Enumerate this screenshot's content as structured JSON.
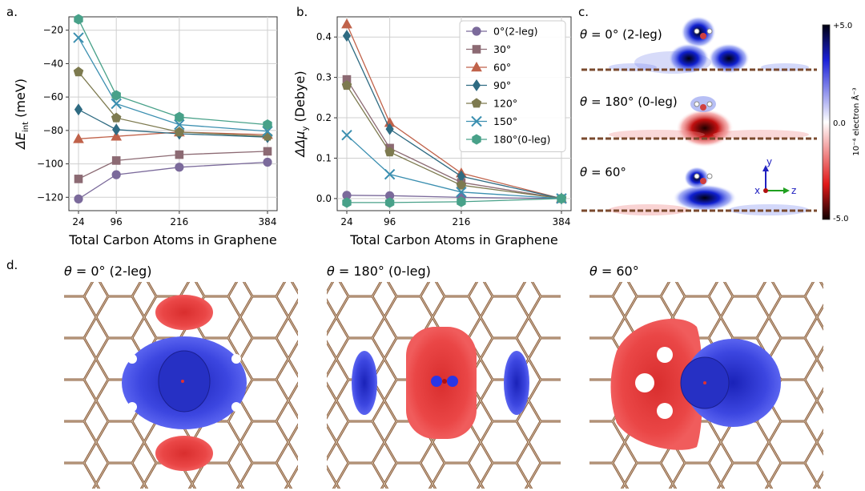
{
  "panel_labels": {
    "a": "a.",
    "b": "b.",
    "c": "c.",
    "d": "d."
  },
  "colors": {
    "s0": "#7b6a9b",
    "s30": "#8c6a73",
    "s60": "#c0624a",
    "s90": "#2f6b82",
    "s120": "#7d7a4f",
    "s150": "#3b8fb0",
    "s180": "#48a189",
    "positive": "#2a36e6",
    "negative": "#e33a3a",
    "bond_dark": "#7a4a2e",
    "bond_light": "#c9b49a"
  },
  "chart_data": [
    {
      "type": "line",
      "panel": "a",
      "x": [
        24,
        96,
        216,
        384
      ],
      "xticks": [
        "24",
        "96",
        "216",
        "384"
      ],
      "xlabel": "Total Carbon Atoms in Graphene",
      "ylabel": "ΔE",
      "ylabel_sub": "int",
      "ylabel_unit": " (meV)",
      "ylim": [
        -128,
        -12
      ],
      "yticks": [
        -20,
        -40,
        -60,
        -80,
        -100,
        -120
      ],
      "ytick_labels": [
        "−20",
        "−40",
        "−60",
        "−80",
        "−100",
        "−120"
      ],
      "grid": true,
      "series": [
        {
          "name": "0°(2-leg)",
          "values": [
            -121,
            -106.5,
            -102,
            -99
          ],
          "marker": "circle",
          "color": "#7b6a9b"
        },
        {
          "name": "30°",
          "values": [
            -109,
            -98,
            -94.5,
            -92.5
          ],
          "marker": "square",
          "color": "#8c6a73"
        },
        {
          "name": "60°",
          "values": [
            -85,
            -83.5,
            -81,
            -82.5
          ],
          "marker": "triangle",
          "color": "#c0624a"
        },
        {
          "name": "90°",
          "values": [
            -67.5,
            -79.5,
            -82,
            -84
          ],
          "marker": "diamond",
          "color": "#2f6b82"
        },
        {
          "name": "120°",
          "values": [
            -45,
            -72.5,
            -81,
            -83.5
          ],
          "marker": "pentagon",
          "color": "#7d7a4f"
        },
        {
          "name": "150°",
          "values": [
            -24.5,
            -64,
            -76.5,
            -80.5
          ],
          "marker": "x",
          "color": "#3b8fb0"
        },
        {
          "name": "180°(0-leg)",
          "values": [
            -13.5,
            -59,
            -72,
            -76.5
          ],
          "marker": "hexagon",
          "color": "#48a189"
        }
      ]
    },
    {
      "type": "line",
      "panel": "b",
      "x": [
        24,
        96,
        216,
        384
      ],
      "xticks": [
        "24",
        "96",
        "216",
        "384"
      ],
      "xlabel": "Total Carbon Atoms in Graphene",
      "ylabel": "ΔΔμ",
      "ylabel_sub": "y",
      "ylabel_unit": " (Debye)",
      "ylim": [
        -0.03,
        0.45
      ],
      "yticks": [
        0.0,
        0.1,
        0.2,
        0.3,
        0.4
      ],
      "ytick_labels": [
        "0.0",
        "0.1",
        "0.2",
        "0.3",
        "0.4"
      ],
      "grid": true,
      "legend_placement": "top-right",
      "series": [
        {
          "name": "0°(2-leg)",
          "values": [
            0.008,
            0.007,
            0.003,
            0.0
          ],
          "marker": "circle",
          "color": "#7b6a9b"
        },
        {
          "name": "30°",
          "values": [
            0.295,
            0.125,
            0.04,
            0.0
          ],
          "marker": "square",
          "color": "#8c6a73"
        },
        {
          "name": "60°",
          "values": [
            0.432,
            0.188,
            0.063,
            0.0
          ],
          "marker": "triangle",
          "color": "#c0624a"
        },
        {
          "name": "90°",
          "values": [
            0.403,
            0.172,
            0.055,
            0.0
          ],
          "marker": "diamond",
          "color": "#2f6b82"
        },
        {
          "name": "120°",
          "values": [
            0.28,
            0.115,
            0.033,
            0.0
          ],
          "marker": "pentagon",
          "color": "#7d7a4f"
        },
        {
          "name": "150°",
          "values": [
            0.157,
            0.06,
            0.016,
            0.0
          ],
          "marker": "x",
          "color": "#3b8fb0"
        },
        {
          "name": "180°(0-leg)",
          "values": [
            -0.01,
            -0.01,
            -0.008,
            0.0
          ],
          "marker": "hexagon",
          "color": "#48a189"
        }
      ]
    }
  ],
  "panel_c": {
    "rows": [
      {
        "prefix": "θ",
        "label": " = 0° (2-leg)",
        "style": "top-blue"
      },
      {
        "prefix": "θ",
        "label": " = 180° (0-leg)",
        "style": "red"
      },
      {
        "prefix": "θ",
        "label": " = 60°",
        "style": "mixed"
      }
    ],
    "colorbar": {
      "max_label": "+5.0",
      "mid_label": "0.0",
      "min_label": "-5.0",
      "unit_label": "10⁻⁴ electron Å⁻³"
    },
    "axes": {
      "y": "y",
      "x": "x",
      "z": "z"
    }
  },
  "panel_d": {
    "titles": [
      {
        "prefix": "θ",
        "label": " = 0° (2-leg)"
      },
      {
        "prefix": "θ",
        "label": " = 180° (0-leg)"
      },
      {
        "prefix": "θ",
        "label": " = 60°"
      }
    ]
  }
}
